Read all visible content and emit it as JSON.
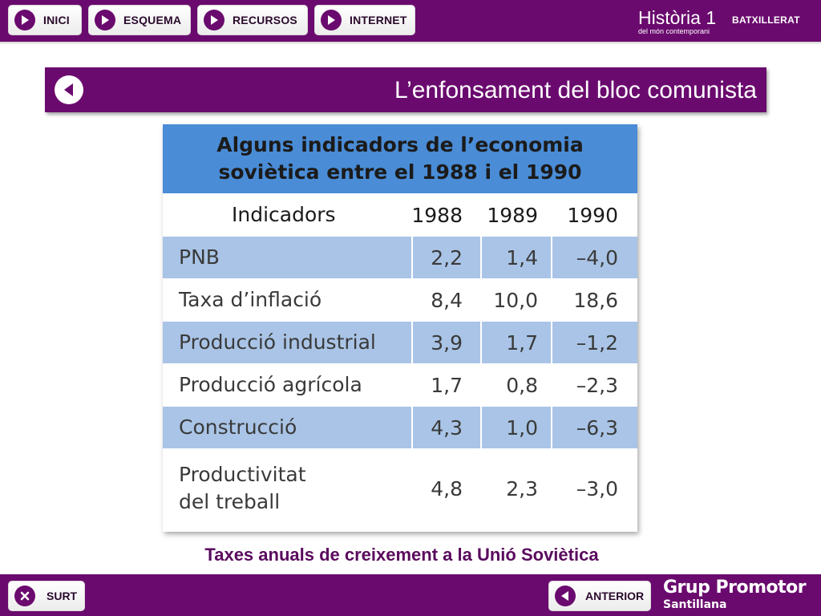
{
  "nav": {
    "inici": "INICI",
    "esquema": "ESQUEMA",
    "recursos": "RECURSOS",
    "internet": "INTERNET"
  },
  "brand": {
    "title": "Història 1",
    "level": "BATXILLERAT",
    "subtitle": "del món contemporani"
  },
  "page": {
    "title": "L’enfonsament del bloc comunista"
  },
  "table": {
    "heading_line1": "Alguns indicadors de l’economia",
    "heading_line2": "soviètica entre el 1988 i el 1990",
    "columns": [
      "Indicadors",
      "1988",
      "1989",
      "1990"
    ],
    "rows": [
      {
        "label": "PNB",
        "v1988": "2,2",
        "v1989": "1,4",
        "v1990": "–4,0"
      },
      {
        "label": "Taxa d’inflació",
        "v1988": "8,4",
        "v1989": "10,0",
        "v1990": "18,6"
      },
      {
        "label": "Producció industrial",
        "v1988": "3,9",
        "v1989": "1,7",
        "v1990": "–1,2"
      },
      {
        "label": "Producció agrícola",
        "v1988": "1,7",
        "v1989": "0,8",
        "v1990": "–2,3"
      },
      {
        "label": "Construcció",
        "v1988": "4,3",
        "v1989": "1,0",
        "v1990": "–6,3"
      },
      {
        "label_line1": "Productivitat",
        "label_line2": "del treball",
        "v1988": "4,8",
        "v1989": "2,3",
        "v1990": "–3,0"
      }
    ]
  },
  "caption": "Taxes anuals de creixement a la Unió Soviètica",
  "footer": {
    "surt": "SURT",
    "anterior": "ANTERIOR",
    "publisher_line1": "Grup Promotor",
    "publisher_line2": "Santillana"
  },
  "colors": {
    "brand_purple": "#6a0a6e",
    "table_header_blue": "#4a8cd6",
    "table_row_blue": "#a9c4e6",
    "caption_color": "#5a0a5e"
  },
  "icons": {
    "nav_buttons": "play-icon",
    "back": "back-arrow-icon",
    "surt": "close-icon",
    "anterior": "back-arrow-icon"
  }
}
